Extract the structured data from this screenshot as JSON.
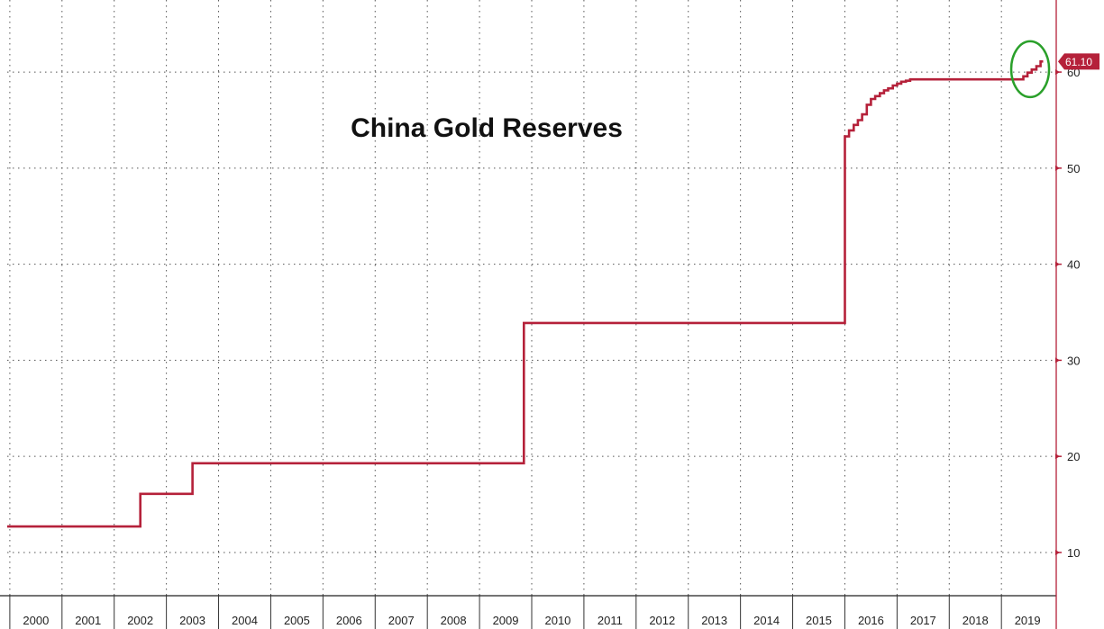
{
  "chart_data": {
    "type": "line",
    "title": "China Gold Reserves",
    "xlabel": "",
    "ylabel": "",
    "x_range": [
      1999.45,
      2019.55
    ],
    "ylim": [
      5.5,
      67.5
    ],
    "grid": true,
    "y_ticks": [
      10,
      20,
      30,
      40,
      50,
      60
    ],
    "x_tick_labels": [
      "2000",
      "2001",
      "2002",
      "2003",
      "2004",
      "2005",
      "2006",
      "2007",
      "2008",
      "2009",
      "2010",
      "2011",
      "2012",
      "2013",
      "2014",
      "2015",
      "2016",
      "2017",
      "2018",
      "2019"
    ],
    "last_value_label": "61.10",
    "highlight_color": "#2aa02a",
    "series": [
      {
        "color": "#b5213a",
        "step": true,
        "points": [
          [
            1999.45,
            12.7
          ],
          [
            2002.0,
            16.1
          ],
          [
            2003.0,
            19.29
          ],
          [
            2009.35,
            33.89
          ],
          [
            2015.5,
            53.3
          ],
          [
            2015.58,
            53.93
          ],
          [
            2015.67,
            54.5
          ],
          [
            2015.75,
            55.0
          ],
          [
            2015.83,
            55.6
          ],
          [
            2015.92,
            56.6
          ],
          [
            2016.0,
            57.2
          ],
          [
            2016.08,
            57.5
          ],
          [
            2016.17,
            57.8
          ],
          [
            2016.25,
            58.1
          ],
          [
            2016.33,
            58.3
          ],
          [
            2016.42,
            58.6
          ],
          [
            2016.5,
            58.8
          ],
          [
            2016.58,
            59.0
          ],
          [
            2016.67,
            59.1
          ],
          [
            2016.75,
            59.24
          ],
          [
            2016.83,
            59.24
          ],
          [
            2018.92,
            59.56
          ],
          [
            2019.0,
            59.94
          ],
          [
            2019.08,
            60.26
          ],
          [
            2019.17,
            60.62
          ],
          [
            2019.25,
            61.1
          ],
          [
            2019.3,
            61.1
          ]
        ]
      }
    ]
  }
}
